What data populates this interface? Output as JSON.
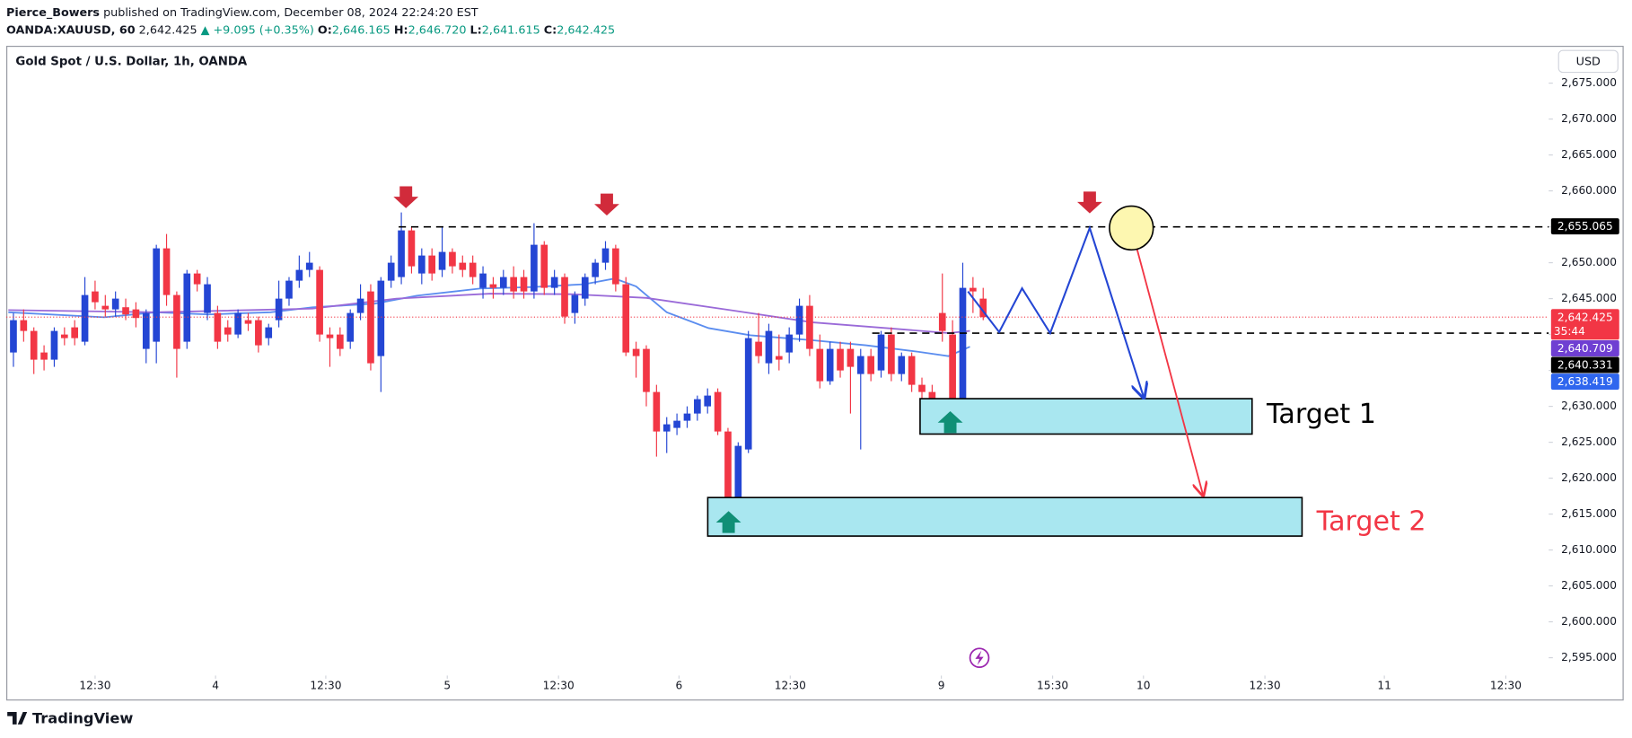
{
  "header": {
    "author": "Pierce_Bowers",
    "published": "published on TradingView.com, December 08, 2024 22:24:20 EST",
    "symbol": "OANDA:XAUUSD, 60",
    "last": "2,642.425",
    "change": "▲ +9.095 (+0.35%)",
    "ohlc": [
      {
        "label": "O:",
        "value": "2,646.165"
      },
      {
        "label": "H:",
        "value": "2,646.720"
      },
      {
        "label": "L:",
        "value": "2,641.615"
      },
      {
        "label": "C:",
        "value": "2,642.425"
      }
    ]
  },
  "chart_data": {
    "type": "candlestick",
    "title": "Gold Spot / U.S. Dollar, 1h, OANDA",
    "currency": "USD",
    "up_color": "#2446d4",
    "down_color": "#f23645",
    "open": [
      2637.5,
      2642,
      2640.5,
      2637.5,
      2636.5,
      2640,
      2641,
      2639,
      2646,
      2644,
      2643.5,
      2643.8,
      2643.5,
      2638,
      2639,
      2652,
      2645.5,
      2639,
      2648.5,
      2643,
      2643,
      2641,
      2640,
      2642,
      2642,
      2639.5,
      2642,
      2645,
      2647.5,
      2649,
      2649,
      2640,
      2640,
      2639,
      2643,
      2646,
      2637,
      2647.5,
      2648,
      2654.5,
      2648.5,
      2651,
      2649,
      2651.5,
      2650,
      2650,
      2646.5,
      2647,
      2646.5,
      2648,
      2648,
      2646,
      2652.5,
      2646.5,
      2648,
      2643,
      2645,
      2648,
      2650,
      2652,
      2647,
      2638,
      2638,
      2632,
      2626.5,
      2627,
      2628,
      2629,
      2630,
      2632,
      2626.5,
      2616,
      2624,
      2639,
      2636,
      2637,
      2637.5,
      2640,
      2644,
      2638,
      2633.5,
      2638,
      2638,
      2634.5,
      2637,
      2635,
      2640,
      2634.5,
      2637,
      2633,
      2632,
      2643,
      2640,
      2631,
      2646.5,
      2645
    ],
    "high": [
      2643,
      2643.5,
      2641,
      2638.5,
      2641,
      2641,
      2642,
      2648,
      2647.5,
      2645.5,
      2646,
      2645,
      2644.5,
      2643.5,
      2652.5,
      2654,
      2646,
      2649,
      2649,
      2648,
      2644,
      2642,
      2643.5,
      2643,
      2642.5,
      2641.5,
      2647.5,
      2648,
      2651,
      2651.5,
      2649.5,
      2641,
      2641,
      2643.5,
      2647,
      2647,
      2648,
      2651,
      2657,
      2655,
      2652,
      2652,
      2655,
      2652,
      2651,
      2651,
      2649.5,
      2648,
      2649,
      2649.5,
      2649,
      2655.5,
      2653,
      2649,
      2648.5,
      2646,
      2648.5,
      2650.5,
      2653,
      2652.5,
      2648,
      2639,
      2638.5,
      2633,
      2628.5,
      2629,
      2630,
      2631.5,
      2632.5,
      2632.5,
      2627,
      2625,
      2640.5,
      2643,
      2641.5,
      2640,
      2641,
      2645,
      2645.5,
      2640,
      2639,
      2639,
      2639,
      2638,
      2638,
      2640.5,
      2641,
      2637.5,
      2637.5,
      2634,
      2633,
      2648.5,
      2642,
      2650,
      2648,
      2646.5
    ],
    "low": [
      2635.5,
      2639,
      2634.5,
      2635,
      2635.5,
      2638.5,
      2638.5,
      2638.5,
      2643.5,
      2642.5,
      2642.5,
      2642,
      2641,
      2636,
      2636,
      2644,
      2634,
      2638,
      2646,
      2642,
      2638,
      2639,
      2639.5,
      2640.5,
      2637.5,
      2638.5,
      2641,
      2644,
      2646.5,
      2648,
      2639,
      2635.5,
      2637,
      2638,
      2642,
      2635,
      2632,
      2646.5,
      2647,
      2648.5,
      2647,
      2647.5,
      2648,
      2648.5,
      2648,
      2647,
      2645,
      2645,
      2645.5,
      2645,
      2645,
      2645,
      2645.5,
      2645.5,
      2641.5,
      2641.5,
      2644,
      2647,
      2649,
      2646,
      2637,
      2634,
      2630,
      2623,
      2623.5,
      2626,
      2627,
      2628,
      2629,
      2626,
      2615,
      2615.5,
      2623.5,
      2636,
      2634.5,
      2635,
      2636,
      2639,
      2637,
      2632.5,
      2633,
      2634,
      2629,
      2624,
      2633.5,
      2634,
      2633.5,
      2633.5,
      2632,
      2631,
      2630.5,
      2639,
      2630.5,
      2630.5,
      2643,
      2642
    ],
    "close": [
      2642,
      2640.5,
      2636.5,
      2636.5,
      2640.5,
      2639.5,
      2639.5,
      2645.5,
      2644.5,
      2643.5,
      2645,
      2642.8,
      2642.3,
      2643,
      2652,
      2645.5,
      2638,
      2648.5,
      2647,
      2647,
      2639,
      2640,
      2643,
      2641.5,
      2638.5,
      2641,
      2645,
      2647.5,
      2649,
      2650,
      2640,
      2639.5,
      2638,
      2643,
      2645,
      2636,
      2647.5,
      2650,
      2654.5,
      2649.5,
      2651,
      2648.5,
      2651.5,
      2649.5,
      2649,
      2648,
      2648.5,
      2646.5,
      2648,
      2646,
      2646,
      2652.5,
      2646.5,
      2648,
      2642.5,
      2645.5,
      2648,
      2650,
      2652,
      2647,
      2637.5,
      2637,
      2632,
      2626.5,
      2627.5,
      2628,
      2629,
      2631,
      2631.5,
      2626.5,
      2615.5,
      2624.5,
      2639.5,
      2637,
      2640.5,
      2636.5,
      2640,
      2644,
      2638,
      2633.5,
      2638,
      2635,
      2635.5,
      2637,
      2634.5,
      2640,
      2634.5,
      2637,
      2633,
      2632,
      2631,
      2640.5,
      2631,
      2646.5,
      2646,
      2642.425
    ],
    "lines": [
      {
        "color": "#5b8def",
        "x": [
          -0.5,
          8.9,
          14,
          19.1,
          25.2,
          29.3,
          35.4,
          39.5,
          45.7,
          50.8,
          55.9,
          58.9,
          61,
          64,
          68.1,
          72.2,
          78.3,
          83.5,
          88.6,
          91.6,
          93.7
        ],
        "values": [
          2643.1,
          2642.4,
          2643.1,
          2642.8,
          2643.1,
          2643.8,
          2644.3,
          2645.4,
          2646.4,
          2646.6,
          2647,
          2647.8,
          2646.7,
          2643.1,
          2640.9,
          2639.9,
          2639.2,
          2638.5,
          2637.6,
          2637,
          2638.3
        ]
      },
      {
        "color": "#9a6ad8",
        "x": [
          -0.5,
          14,
          29.3,
          37.5,
          46.7,
          54.9,
          62,
          70.2,
          78.3,
          85.5,
          91.6,
          93.7
        ],
        "values": [
          2643.4,
          2643.1,
          2643.6,
          2645,
          2645.7,
          2645.6,
          2645.1,
          2643.4,
          2641.7,
          2640.9,
          2640.2,
          2640.5
        ]
      }
    ],
    "xlim": [
      -0.7,
      150.4
    ],
    "xticks": [
      {
        "value": 8,
        "label": "12:30"
      },
      {
        "value": 19.8,
        "label": "4"
      },
      {
        "value": 30.6,
        "label": "12:30"
      },
      {
        "value": 42.5,
        "label": "5"
      },
      {
        "value": 53.4,
        "label": "12:30"
      },
      {
        "value": 65.2,
        "label": "6"
      },
      {
        "value": 76.1,
        "label": "12:30"
      },
      {
        "value": 90.9,
        "label": "9"
      },
      {
        "value": 101.8,
        "label": "15:30"
      },
      {
        "value": 110.7,
        "label": "10"
      },
      {
        "value": 122.6,
        "label": "12:30"
      },
      {
        "value": 134.3,
        "label": "11"
      },
      {
        "value": 146.2,
        "label": "12:30"
      }
    ],
    "ylim": [
      2593.1,
      2680.2
    ],
    "yticks": [
      {
        "value": 2595,
        "label": "2,595.000"
      },
      {
        "value": 2600,
        "label": "2,600.000"
      },
      {
        "value": 2605,
        "label": "2,605.000"
      },
      {
        "value": 2610,
        "label": "2,610.000"
      },
      {
        "value": 2615,
        "label": "2,615.000"
      },
      {
        "value": 2620,
        "label": "2,620.000"
      },
      {
        "value": 2625,
        "label": "2,625.000"
      },
      {
        "value": 2630,
        "label": "2,630.000"
      },
      {
        "value": 2635,
        "label": "2,635.000"
      },
      {
        "value": 2640,
        "label": "2,640.000"
      },
      {
        "value": 2645,
        "label": "2,645.000"
      },
      {
        "value": 2650,
        "label": "2,650.000"
      },
      {
        "value": 2655,
        "label": "2,655.000"
      },
      {
        "value": 2660,
        "label": "2,660.000"
      },
      {
        "value": 2665,
        "label": "2,665.000"
      },
      {
        "value": 2670,
        "label": "2,670.000"
      },
      {
        "value": 2675,
        "label": "2,675.000"
      }
    ],
    "price_tags": [
      {
        "value": 2655.065,
        "label": "2,655.065",
        "color": "#000000"
      },
      {
        "value": 2642.425,
        "label": "2,642.425",
        "color": "#f23645",
        "countdown": "35:44"
      },
      {
        "value": 2640.709,
        "label": "2,640.709",
        "color": "#6f3fd2"
      },
      {
        "value": 2640.331,
        "label": "2,640.331",
        "color": "#000000"
      },
      {
        "value": 2638.419,
        "label": "2,638.419",
        "color": "#2f66ee"
      }
    ],
    "annotations": [
      "Target 1",
      "Target 2"
    ]
  },
  "footer": {
    "brand": "TradingView"
  }
}
